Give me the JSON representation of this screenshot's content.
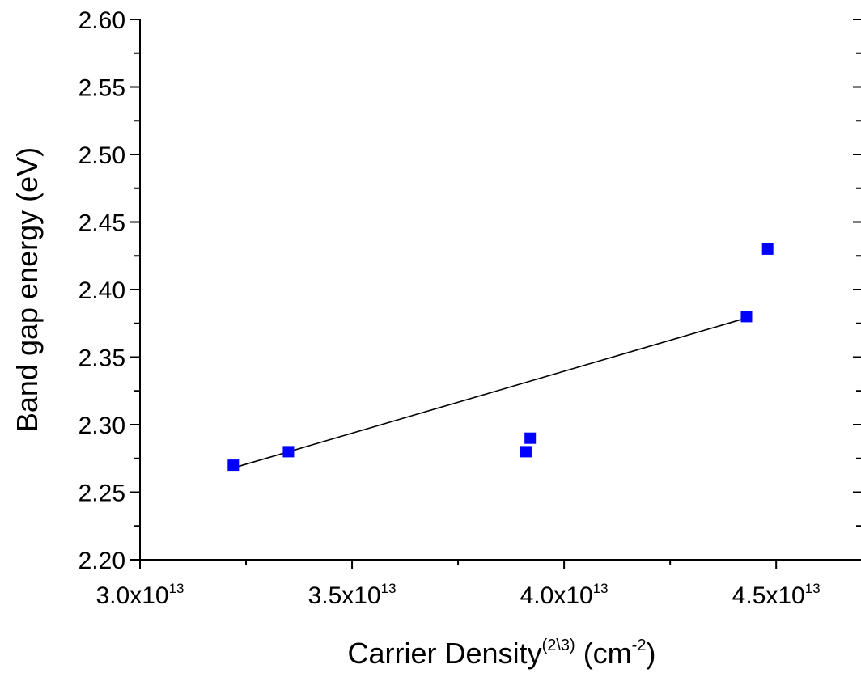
{
  "chart_data": {
    "type": "scatter",
    "title": "",
    "xlabel": {
      "main": "Carrier Density",
      "superscript": "(2\\3)",
      "unit_prefix": " (cm",
      "unit_exp": "-2",
      "unit_suffix": ")"
    },
    "ylabel": "Band gap energy (eV)",
    "xlim": [
      30000000000000.0,
      47000000000000.0
    ],
    "ylim": [
      2.2,
      2.6
    ],
    "x_ticks": [
      {
        "value": 30000000000000.0,
        "mantissa": "3.0x10",
        "exp": "13"
      },
      {
        "value": 35000000000000.0,
        "mantissa": "3.5x10",
        "exp": "13"
      },
      {
        "value": 40000000000000.0,
        "mantissa": "4.0x10",
        "exp": "13"
      },
      {
        "value": 45000000000000.0,
        "mantissa": "4.5x10",
        "exp": "13"
      }
    ],
    "y_ticks": [
      {
        "value": 2.2,
        "label": "2.20"
      },
      {
        "value": 2.25,
        "label": "2.25"
      },
      {
        "value": 2.3,
        "label": "2.30"
      },
      {
        "value": 2.35,
        "label": "2.35"
      },
      {
        "value": 2.4,
        "label": "2.40"
      },
      {
        "value": 2.45,
        "label": "2.45"
      },
      {
        "value": 2.5,
        "label": "2.50"
      },
      {
        "value": 2.55,
        "label": "2.55"
      },
      {
        "value": 2.6,
        "label": "2.60"
      }
    ],
    "series": [
      {
        "marker": "square",
        "color": "#0000ff",
        "points": [
          {
            "x": 32200000000000.0,
            "y": 2.27
          },
          {
            "x": 33500000000000.0,
            "y": 2.28
          },
          {
            "x": 39100000000000.0,
            "y": 2.28
          },
          {
            "x": 39200000000000.0,
            "y": 2.29
          },
          {
            "x": 44300000000000.0,
            "y": 2.38
          },
          {
            "x": 44800000000000.0,
            "y": 2.43
          }
        ]
      }
    ],
    "fit_line": {
      "color": "#000000",
      "start": {
        "x": 32200000000000.0,
        "y": 2.268
      },
      "end": {
        "x": 44300000000000.0,
        "y": 2.379
      }
    },
    "grid": false,
    "legend": "none"
  }
}
